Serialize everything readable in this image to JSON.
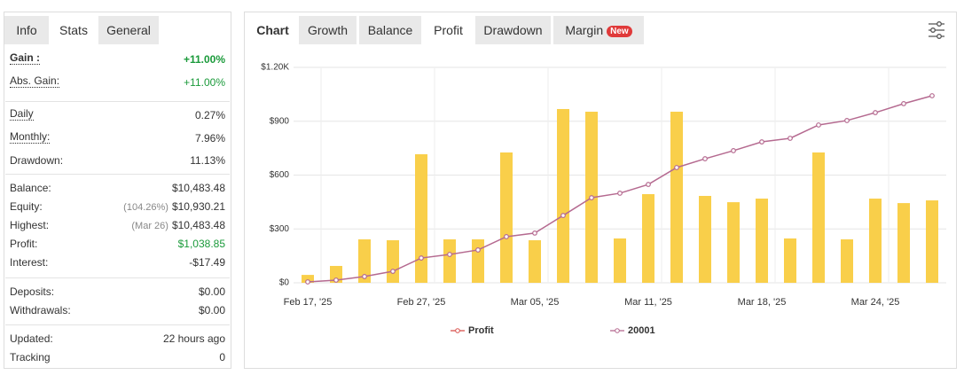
{
  "left_tabs": [
    "Info",
    "Stats",
    "General"
  ],
  "stats": [
    [
      {
        "label": "Gain :",
        "value": "+11.00%",
        "color": "#1a9a3a",
        "bold": true,
        "dotted": true
      },
      {
        "label": "Abs. Gain:",
        "value": "+11.00%",
        "color": "#1a9a3a",
        "dotted": true
      }
    ],
    [
      {
        "label": "Daily",
        "value": "0.27%",
        "dotted": true
      },
      {
        "label": "Monthly:",
        "value": "7.96%",
        "dotted": true
      },
      {
        "label": "Drawdown:",
        "value": "11.13%"
      }
    ],
    [
      {
        "label": "Balance:",
        "value": "$10,483.48"
      },
      {
        "label": "Equity:",
        "note": "(104.26%)",
        "value": "$10,930.21"
      },
      {
        "label": "Highest:",
        "note": "(Mar 26)",
        "value": "$10,483.48"
      },
      {
        "label": "Profit:",
        "value": "$1,038.85",
        "color": "#1a9a3a"
      },
      {
        "label": "Interest:",
        "value": "-$17.49"
      }
    ],
    [
      {
        "label": "Deposits:",
        "value": "$0.00"
      },
      {
        "label": "Withdrawals:",
        "value": "$0.00"
      }
    ],
    [
      {
        "label": "Updated:",
        "value": "22 hours ago"
      },
      {
        "label": "Tracking",
        "value": "0"
      }
    ]
  ],
  "right_tabs": [
    "Chart",
    "Growth",
    "Balance",
    "Profit",
    "Drawdown",
    "Margin"
  ],
  "badge": "New",
  "chart_data": {
    "type": "bar",
    "categories": [
      "Feb 17, '25",
      null,
      null,
      null,
      "Feb 27, '25",
      null,
      null,
      null,
      "Mar 05, '25",
      null,
      null,
      null,
      "Mar 11, '25",
      null,
      null,
      null,
      "Mar 18, '25",
      null,
      null,
      null,
      "Mar 24, '25",
      null,
      null
    ],
    "series": [
      {
        "name": "Profit",
        "type": "bar",
        "color": "#f9cf4a",
        "legend_color": "#d9534f",
        "values": [
          44,
          94,
          242,
          237,
          716,
          242,
          242,
          726,
          237,
          968,
          953,
          247,
          494,
          953,
          484,
          449,
          469,
          247,
          726,
          242,
          469,
          444,
          459
        ]
      },
      {
        "name": "20001",
        "type": "line",
        "color": "#b56a90",
        "values": [
          5,
          15,
          35,
          64,
          138,
          158,
          183,
          257,
          277,
          375,
          474,
          499,
          548,
          642,
          691,
          736,
          785,
          805,
          879,
          904,
          948,
          998,
          1042
        ]
      }
    ],
    "ylim": [
      0,
      1200
    ],
    "yticks": [
      {
        "value": 0,
        "label": "$0"
      },
      {
        "value": 300,
        "label": "$300"
      },
      {
        "value": 600,
        "label": "$600"
      },
      {
        "value": 900,
        "label": "$900"
      },
      {
        "value": 1200,
        "label": "$1.20K"
      }
    ],
    "grid": true
  }
}
